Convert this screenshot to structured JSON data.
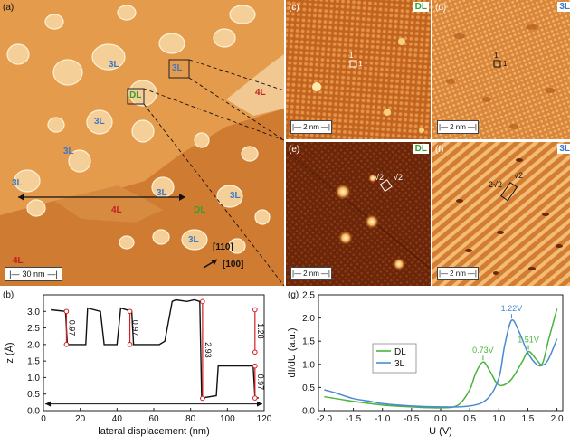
{
  "panels": {
    "a": {
      "letter": "(a)",
      "regions": [
        "3L",
        "3L",
        "3L",
        "3L",
        "3L",
        "3L",
        "3L",
        "4L",
        "4L",
        "4L",
        "DL"
      ],
      "boxed_regions": [
        "3L",
        "DL"
      ],
      "directions": [
        "[110]",
        "[100]"
      ],
      "scalebar": "30 nm"
    },
    "b": {
      "letter": "(b)",
      "chart_data": {
        "type": "line",
        "xlabel": "lateral displacement (nm)",
        "ylabel": "z (Å)",
        "xlim": [
          0,
          120
        ],
        "ylim": [
          0,
          3.5
        ],
        "xticks": [
          "0",
          "20",
          "40",
          "60",
          "80",
          "100",
          "120"
        ],
        "yticks": [
          "0.0",
          "0.5",
          "1.0",
          "1.5",
          "2.0",
          "2.5",
          "3.0"
        ],
        "x": [
          4,
          12,
          13,
          23,
          24,
          31,
          33,
          40,
          42,
          48,
          49,
          63,
          66,
          70,
          72,
          78,
          82,
          85,
          86,
          87,
          88,
          94,
          95,
          105,
          106,
          114,
          115,
          117
        ],
        "y": [
          3.05,
          3.0,
          2.0,
          2.0,
          3.1,
          3.0,
          2.0,
          2.0,
          3.1,
          3.0,
          2.0,
          2.0,
          2.1,
          3.3,
          3.35,
          3.3,
          3.35,
          3.3,
          0.4,
          0.35,
          0.4,
          0.45,
          1.35,
          1.35,
          1.35,
          1.35,
          0.4,
          0.38
        ],
        "annotations": [
          "0.97",
          "0.97",
          "2.93",
          "1.28",
          "0.97"
        ]
      }
    },
    "c": {
      "letter": "(c)",
      "tag": "DL",
      "cell": [
        "1",
        "1"
      ],
      "scalebar": "2 nm"
    },
    "d": {
      "letter": "(d)",
      "tag": "3L",
      "cell": [
        "1",
        "1"
      ],
      "scalebar": "2 nm"
    },
    "e": {
      "letter": "(e)",
      "tag": "DL",
      "cell": [
        "√2",
        "√2"
      ],
      "scalebar": "2 nm"
    },
    "f": {
      "letter": "(f)",
      "tag": "3L",
      "cell": [
        "2√2",
        "√2"
      ],
      "scalebar": "2 nm"
    },
    "g": {
      "letter": "(g)",
      "chart_data": {
        "type": "line",
        "xlabel": "U (V)",
        "ylabel": "dI/dU (a.u.)",
        "xlim": [
          -2.1,
          2.1
        ],
        "ylim": [
          0,
          2.5
        ],
        "xticks": [
          "-2.0",
          "-1.5",
          "-1.0",
          "-0.5",
          "0.0",
          "0.5",
          "1.0",
          "1.5",
          "2.0"
        ],
        "yticks": [
          "0.0",
          "0.5",
          "1.0",
          "1.5",
          "2.0",
          "2.5"
        ],
        "series": [
          {
            "name": "DL",
            "x": [
              -2.0,
              -1.5,
              -1.0,
              -0.5,
              0.0,
              0.3,
              0.5,
              0.6,
              0.73,
              0.85,
              1.0,
              1.2,
              1.4,
              1.51,
              1.65,
              1.75,
              1.85,
              2.0
            ],
            "y": [
              0.3,
              0.2,
              0.12,
              0.08,
              0.06,
              0.12,
              0.45,
              0.8,
              1.05,
              0.85,
              0.55,
              0.65,
              1.05,
              1.28,
              1.1,
              1.02,
              1.5,
              2.2
            ]
          },
          {
            "name": "3L",
            "x": [
              -2.0,
              -1.8,
              -1.5,
              -1.2,
              -1.0,
              -0.5,
              0.0,
              0.5,
              0.8,
              1.0,
              1.1,
              1.22,
              1.35,
              1.5,
              1.65,
              1.75,
              1.85,
              2.0
            ],
            "y": [
              0.45,
              0.38,
              0.26,
              0.2,
              0.15,
              0.1,
              0.08,
              0.1,
              0.25,
              0.7,
              1.4,
              1.95,
              1.7,
              1.25,
              1.0,
              0.98,
              1.1,
              1.55
            ]
          }
        ],
        "annotations": [
          "0.73V",
          "1.22V",
          "1.51V"
        ],
        "legend_position": "center-left",
        "colors": {
          "DL": "#4ab43c",
          "3L": "#4a8ad0"
        }
      }
    }
  }
}
